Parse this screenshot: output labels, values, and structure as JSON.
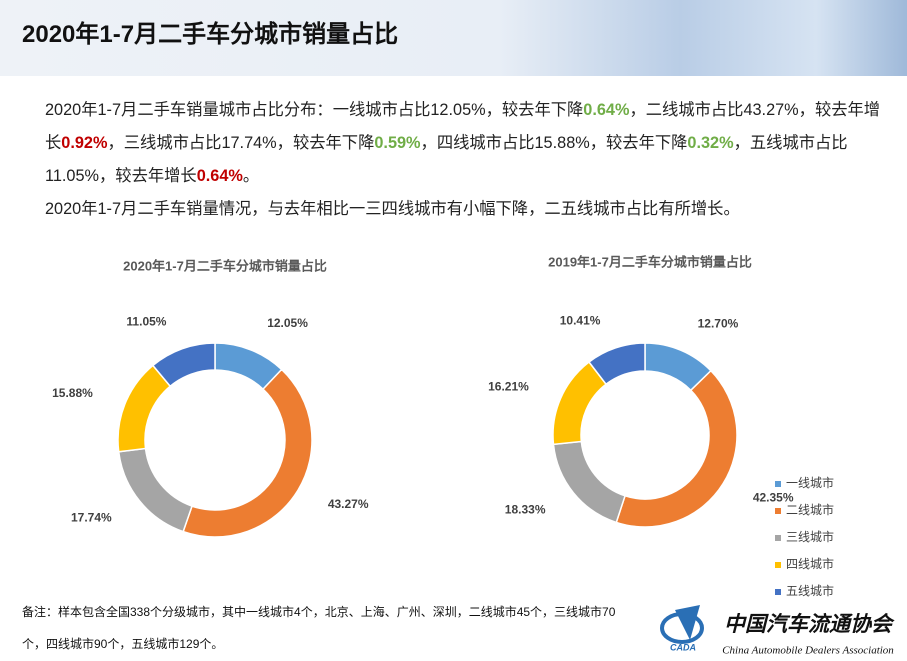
{
  "header": {
    "title": "2020年1-7月二手车分城市销量占比"
  },
  "body": {
    "paragraphs": [
      [
        {
          "text": "2020年1-7月二手车销量城市占比分布：一线城市占比12.05%，较去年下降"
        },
        {
          "text": "0.64%",
          "color": "#70ad47"
        },
        {
          "text": "，二线城市占比43.27%，较去年增长"
        },
        {
          "text": "0.92%",
          "color": "#c00000"
        },
        {
          "text": "，三线城市占比17.74%，较去年下降"
        },
        {
          "text": "0.59%",
          "color": "#70ad47"
        },
        {
          "text": "，四线城市占比15.88%，较去年下降"
        },
        {
          "text": "0.32%",
          "color": "#70ad47"
        },
        {
          "text": "，五线城市占比11.05%，较去年增长"
        },
        {
          "text": "0.64%",
          "color": "#c00000"
        },
        {
          "text": "。"
        }
      ],
      [
        {
          "text": "2020年1-7月二手车销量情况，与去年相比一三四线城市有小幅下降，二五线城市占比有所增长。"
        }
      ]
    ]
  },
  "chart_data": [
    {
      "type": "donut",
      "title": "2020年1-7月二手车分城市销量占比",
      "values": [
        12.05,
        43.27,
        17.74,
        15.88,
        11.05
      ],
      "value_labels": [
        "12.05%",
        "43.27%",
        "17.74%",
        "15.88%",
        "11.05%"
      ],
      "colors": [
        "#5b9bd5",
        "#ed7d31",
        "#a5a5a5",
        "#ffc000",
        "#4472c4"
      ]
    },
    {
      "type": "donut",
      "title": "2019年1-7月二手车分城市销量占比",
      "categories": [
        "一线城市",
        "二线城市",
        "三线城市",
        "四线城市",
        "五线城市"
      ],
      "values": [
        12.7,
        42.35,
        18.33,
        16.21,
        10.41
      ],
      "value_labels": [
        "12.70%",
        "42.35%",
        "18.33%",
        "16.21%",
        "10.41%"
      ],
      "colors": [
        "#5b9bd5",
        "#ed7d31",
        "#a5a5a5",
        "#ffc000",
        "#4472c4"
      ],
      "legend": "right"
    }
  ],
  "note": {
    "text": "备注：样本包含全国338个分级城市，其中一线城市4个，北京、上海、广州、深圳，二线城市45个，三线城市70个，四线城市90个，五线城市129个。"
  },
  "logo": {
    "abbr": "CADA",
    "name": "中国汽车流通协会",
    "name_en": "China Automobile Dealers Association"
  }
}
